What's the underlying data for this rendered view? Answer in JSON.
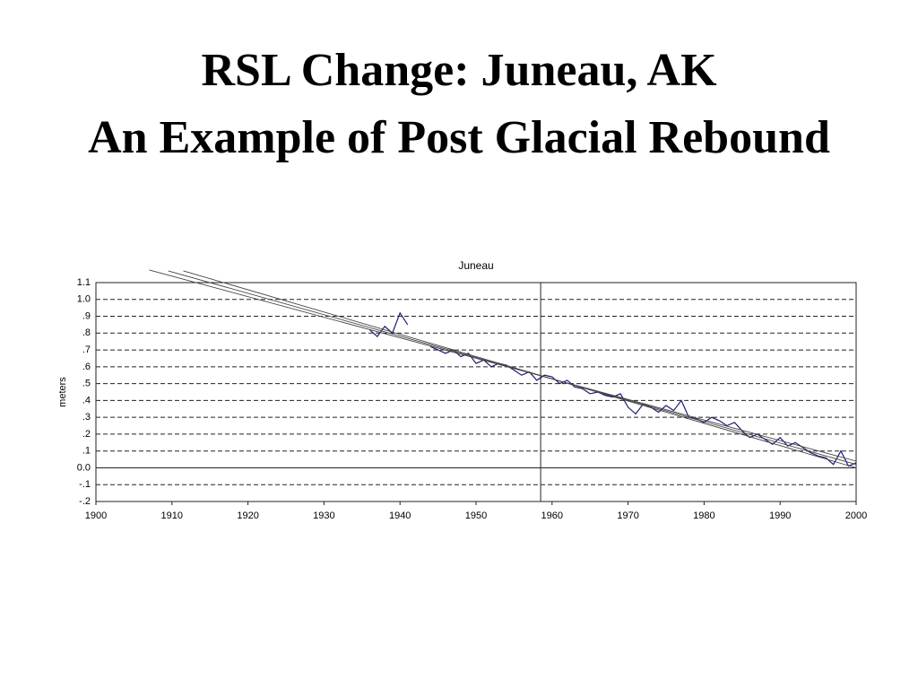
{
  "slide_title": [
    "RSL Change: Juneau, AK",
    "An Example of Post Glacial Rebound"
  ],
  "chart_data": {
    "type": "line",
    "title": "Juneau",
    "y_label": "meters",
    "xlim": [
      1900,
      2000
    ],
    "xticks": [
      1900,
      1910,
      1920,
      1930,
      1940,
      1950,
      1960,
      1970,
      1980,
      1990,
      2000
    ],
    "ylim": [
      -0.2,
      1.1
    ],
    "yticks": [
      {
        "value": -0.2,
        "label": "-.2"
      },
      {
        "value": -0.1,
        "label": "-.1"
      },
      {
        "value": 0,
        "label": "0.0"
      },
      {
        "value": 0.1,
        "label": ".1"
      },
      {
        "value": 0.2,
        "label": ".2"
      },
      {
        "value": 0.3,
        "label": ".3"
      },
      {
        "value": 0.4,
        "label": ".4"
      },
      {
        "value": 0.5,
        "label": ".5"
      },
      {
        "value": 0.6,
        "label": ".6"
      },
      {
        "value": 0.7,
        "label": ".7"
      },
      {
        "value": 0.8,
        "label": ".8"
      },
      {
        "value": 0.9,
        "label": ".9"
      },
      {
        "value": 1,
        "label": "1.0"
      },
      1.1
    ],
    "grid": true,
    "reference_x": 1958.5,
    "series": [
      {
        "color": "#1c1c7a",
        "x": [
          1936,
          1937,
          1938,
          1939,
          1940,
          1941,
          1942,
          1943,
          1944,
          1945,
          1946,
          1947,
          1948,
          1949,
          1950,
          1951,
          1952,
          1953,
          1954,
          1955,
          1956,
          1957,
          1958,
          1959,
          1960,
          1961,
          1962,
          1963,
          1964,
          1965,
          1966,
          1967,
          1968,
          1969,
          1970,
          1971,
          1972,
          1973,
          1974,
          1975,
          1976,
          1977,
          1978,
          1979,
          1980,
          1981,
          1982,
          1983,
          1984,
          1985,
          1986,
          1987,
          1988,
          1989,
          1990,
          1991,
          1992,
          1993,
          1994,
          1995,
          1996,
          1997,
          1998,
          1999,
          2000
        ],
        "values": [
          0.82,
          0.78,
          0.84,
          0.8,
          0.92,
          0.85,
          null,
          null,
          0.72,
          0.7,
          0.68,
          0.7,
          0.66,
          0.68,
          0.62,
          0.64,
          0.6,
          0.62,
          0.61,
          0.58,
          0.55,
          0.57,
          0.52,
          0.55,
          0.54,
          0.5,
          0.52,
          0.48,
          0.47,
          0.44,
          0.45,
          0.43,
          0.42,
          0.44,
          0.36,
          0.32,
          0.38,
          0.36,
          0.33,
          0.37,
          0.34,
          0.4,
          0.3,
          0.29,
          0.27,
          0.3,
          0.28,
          0.25,
          0.27,
          0.22,
          0.18,
          0.2,
          0.17,
          0.14,
          0.18,
          0.13,
          0.15,
          0.12,
          0.09,
          0.07,
          0.06,
          0.02,
          0.1,
          0.01,
          0.03
        ]
      },
      {
        "color": "#444444",
        "x": [
          1907,
          2000
        ],
        "values": [
          1.175,
          0.04
        ]
      },
      {
        "color": "#444444",
        "x": [
          1909.5,
          2000
        ],
        "values": [
          1.17,
          0.02
        ]
      },
      {
        "color": "#444444",
        "x": [
          1911.5,
          2000
        ],
        "values": [
          1.17,
          0
        ]
      }
    ]
  }
}
